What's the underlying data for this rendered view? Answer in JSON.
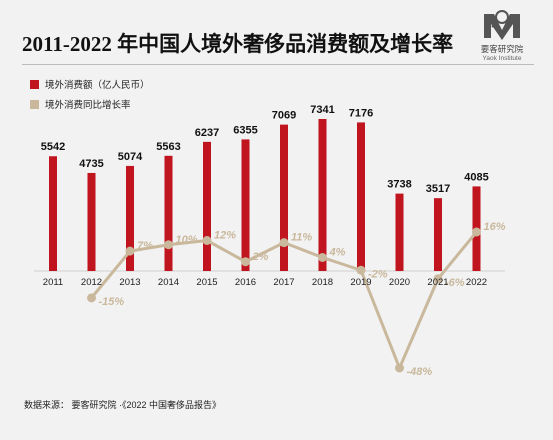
{
  "title": "2011-2022 年中国人境外奢侈品消费额及增长率",
  "logo": {
    "name_cn": "要客研究院",
    "name_en": "Yaok Institute"
  },
  "chart_data": {
    "type": "bar",
    "categories": [
      "2011",
      "2012",
      "2013",
      "2014",
      "2015",
      "2016",
      "2017",
      "2018",
      "2019",
      "2020",
      "2021",
      "2022"
    ],
    "series": [
      {
        "name": "境外消费额（亿人民币）",
        "type": "bar",
        "color": "#c0141e",
        "values": [
          5542,
          4735,
          5074,
          5563,
          6237,
          6355,
          7069,
          7341,
          7176,
          3738,
          3517,
          4085
        ],
        "labels": [
          "5542",
          "4735",
          "5074",
          "5563",
          "6237",
          "6355",
          "7069",
          "7341",
          "7176",
          "3738",
          "3517",
          "4085"
        ]
      },
      {
        "name": "境外消费同比增长率",
        "type": "line",
        "color": "#c9b89c",
        "values": [
          null,
          -15,
          7,
          10,
          12,
          2,
          11,
          4,
          -2,
          -48,
          -6,
          16
        ],
        "labels": [
          "",
          "-15%",
          "7%",
          "10%",
          "12%",
          "2%",
          "11%",
          "4%",
          "-2%",
          "-48%",
          "-6%",
          "16%"
        ]
      }
    ],
    "legend_position": "top-left",
    "grid": false
  },
  "source": "数据来源：  要客研究院 ·《2022 中国奢侈品报告》"
}
